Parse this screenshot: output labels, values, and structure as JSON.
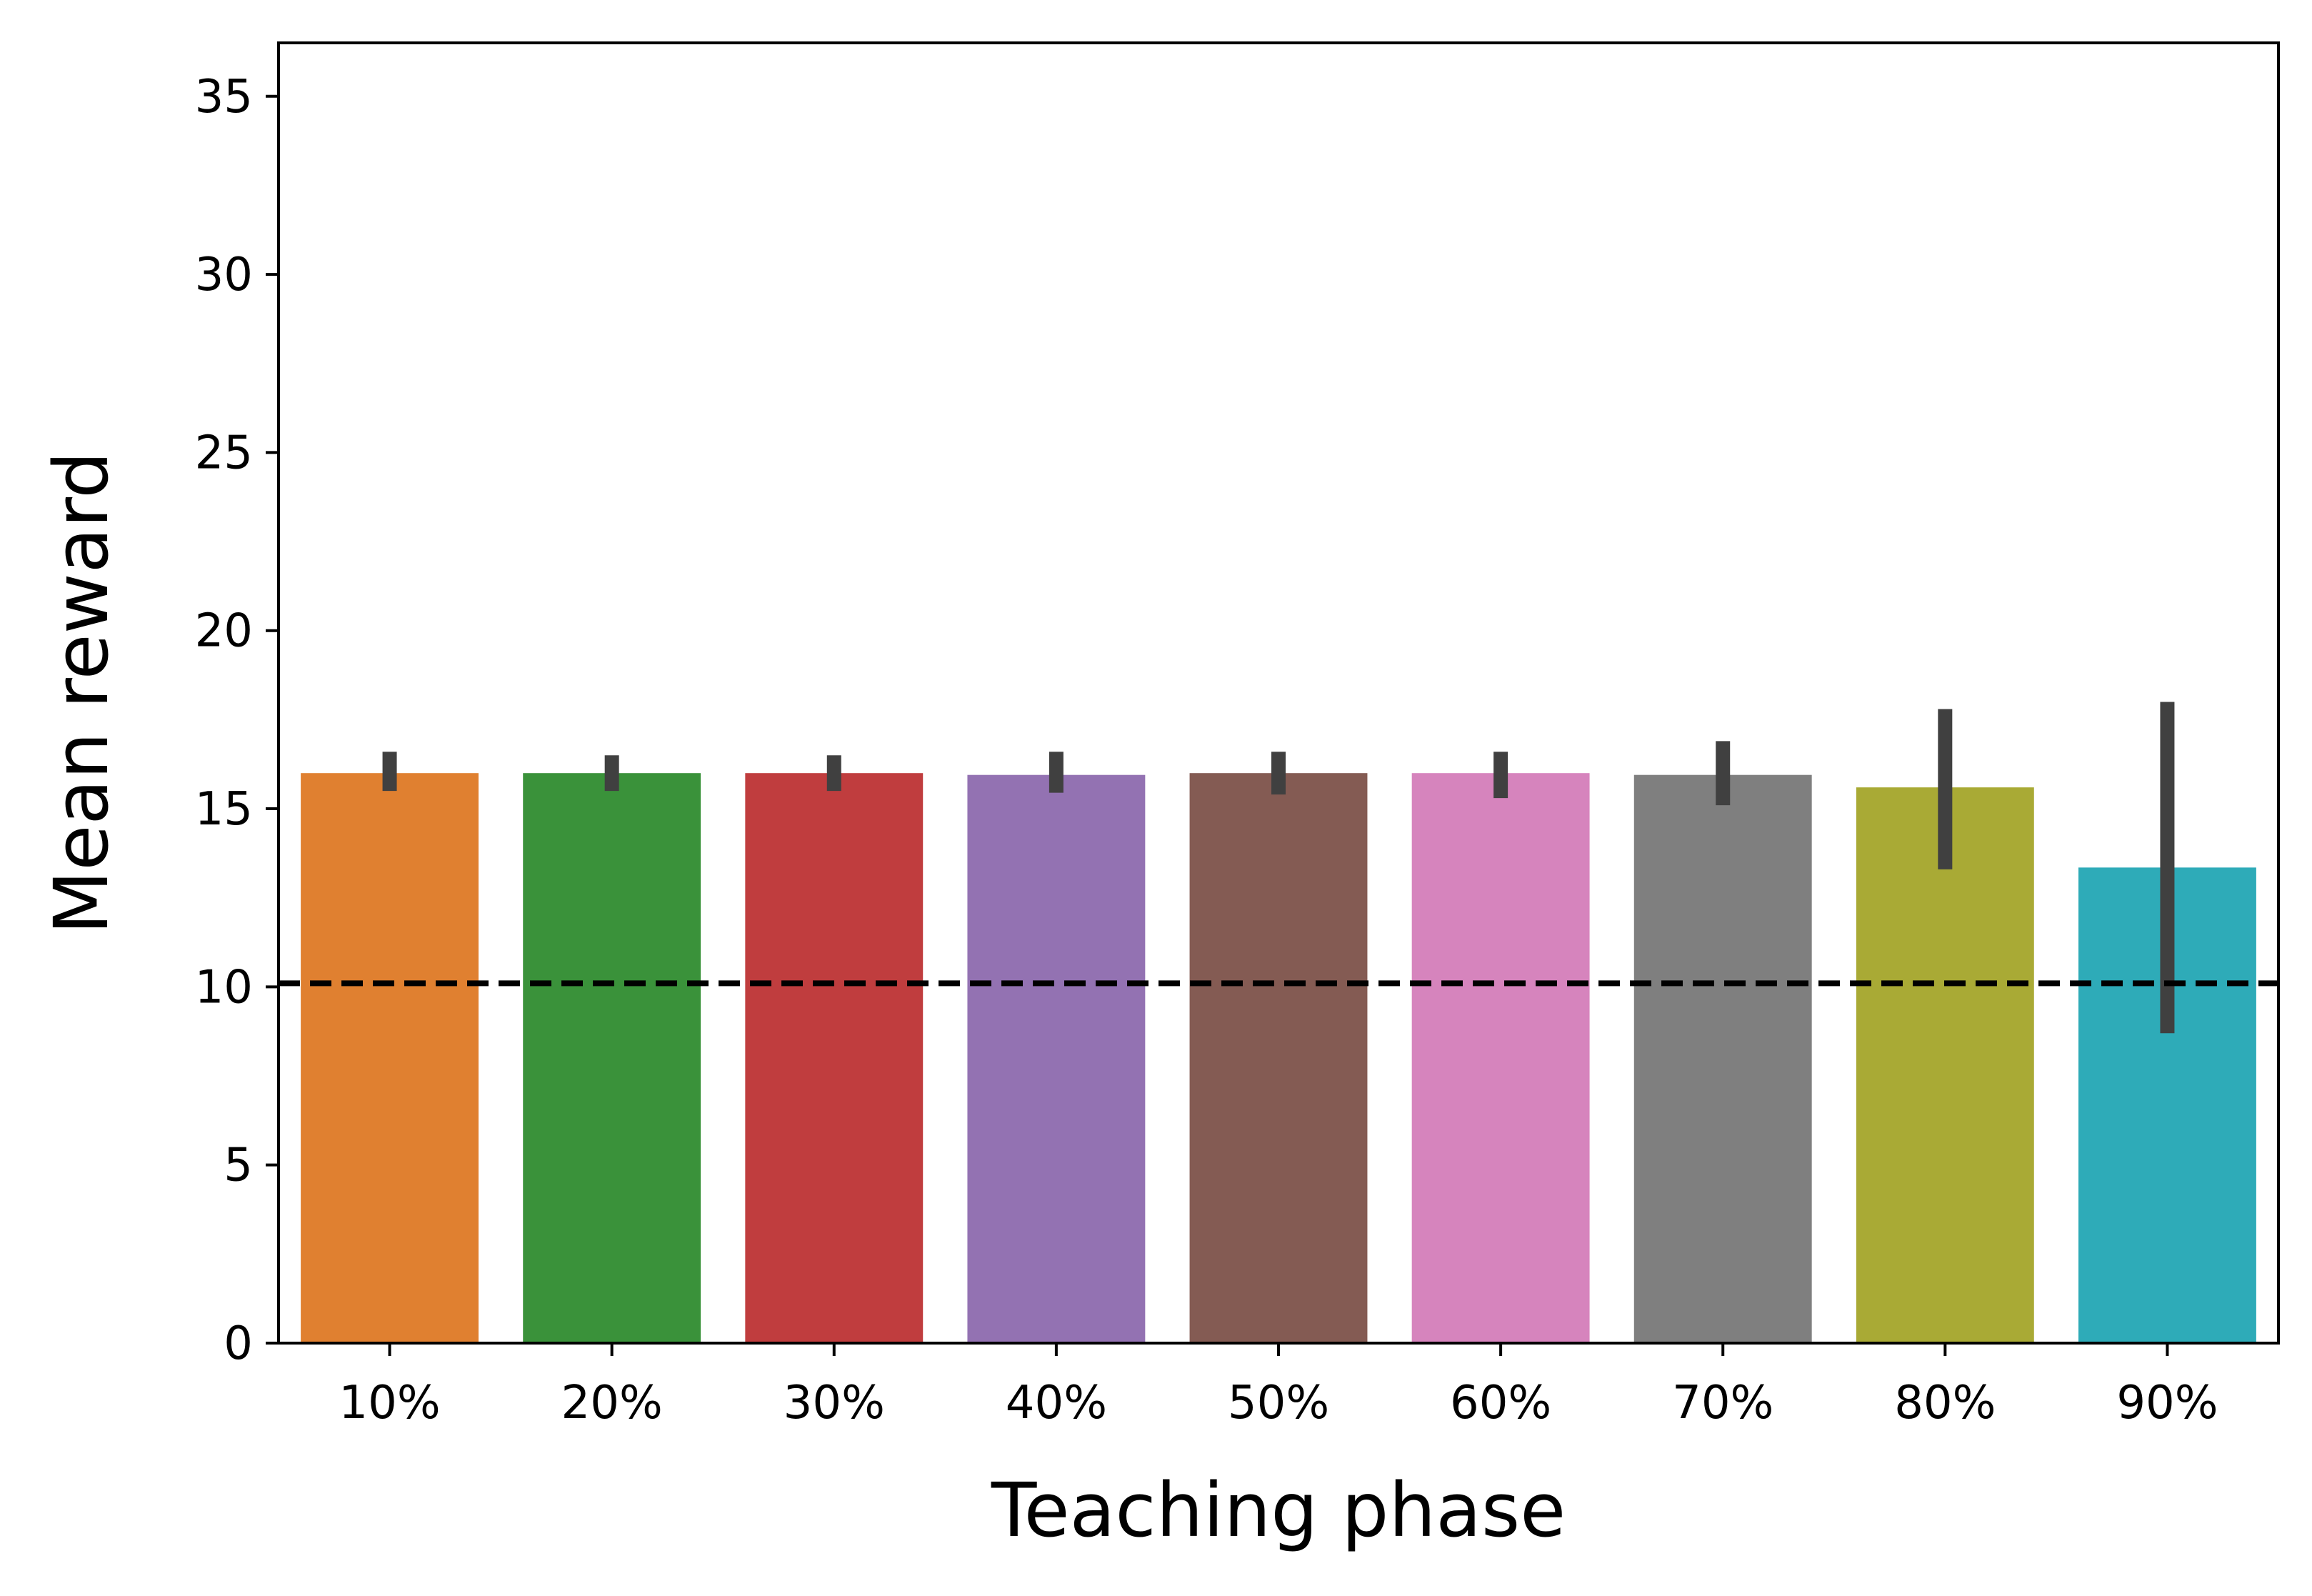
{
  "chart_data": {
    "type": "bar",
    "xlabel": "Teaching phase",
    "ylabel": "Mean reward",
    "categories": [
      "10%",
      "20%",
      "30%",
      "40%",
      "50%",
      "60%",
      "70%",
      "80%",
      "90%"
    ],
    "values": [
      16.0,
      16.0,
      16.0,
      15.95,
      16.0,
      16.0,
      15.95,
      15.6,
      13.35
    ],
    "error_low": [
      15.5,
      15.5,
      15.5,
      15.45,
      15.4,
      15.3,
      15.1,
      13.3,
      8.7
    ],
    "error_high": [
      16.6,
      16.5,
      16.5,
      16.6,
      16.6,
      16.6,
      16.9,
      17.8,
      18.0
    ],
    "colors": [
      "#e08030",
      "#3a923a",
      "#c03d3e",
      "#9372b2",
      "#845b53",
      "#d684bd",
      "#7f7f7f",
      "#a9aa35",
      "#2eabb8"
    ],
    "error_bar_color": "#404040",
    "reference_line": {
      "y": 10.1,
      "style": "dashed",
      "color": "#000000"
    },
    "ylim": [
      0,
      36.5
    ],
    "yticks": [
      0,
      5,
      10,
      15,
      20,
      25,
      30,
      35
    ],
    "grid": false,
    "legend": "none"
  }
}
